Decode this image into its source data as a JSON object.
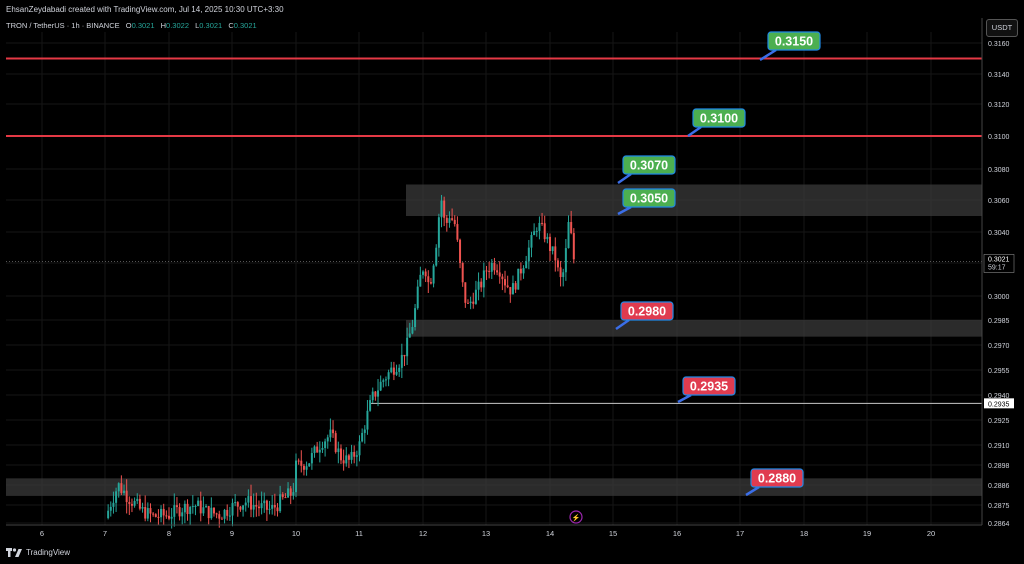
{
  "header": {
    "creator": "EhsanZeydabadi created with TradingView.com, Jul 14, 2025 10:30 UTC+3:30",
    "symbol": "TRON / TetherUS · 1h · BINANCE",
    "ohlc": [
      {
        "label": "O",
        "value": "0.3021"
      },
      {
        "label": "H",
        "value": "0.3022"
      },
      {
        "label": "L",
        "value": "0.3021"
      },
      {
        "label": "C",
        "value": "0.3021"
      }
    ],
    "currency": "USDT"
  },
  "footer": {
    "brand": "TradingView"
  },
  "colors": {
    "up": "#26a69a",
    "down": "#ef5350",
    "resistance": "#e53945",
    "label_green": "#4caf50",
    "label_red": "#e03b4f",
    "zone": "#3a3a3a",
    "grid": "#161616"
  },
  "chart_data": {
    "type": "candlestick",
    "x_ticks": [
      "6",
      "7",
      "8",
      "9",
      "10",
      "11",
      "12",
      "13",
      "14",
      "15",
      "16",
      "17",
      "18",
      "19",
      "20"
    ],
    "y_ticks": [
      "0.3160",
      "0.3140",
      "0.3120",
      "0.3100",
      "0.3080",
      "0.3060",
      "0.3040",
      "0.3020",
      "0.3000",
      "0.2985",
      "0.2970",
      "0.2955",
      "0.2940",
      "0.2925",
      "0.2910",
      "0.2898",
      "0.2886",
      "0.2875",
      "0.2864"
    ],
    "ylim": [
      0.2864,
      0.3165
    ],
    "last_price": "0.3021",
    "countdown": "59:17",
    "level_marker": "0.2935",
    "horizontal_lines": [
      {
        "price": 0.315,
        "style": "resistance"
      },
      {
        "price": 0.31,
        "style": "resistance"
      },
      {
        "price": 0.2935,
        "style": "plain"
      }
    ],
    "zones": [
      {
        "top": 0.307,
        "bottom": 0.305
      },
      {
        "top": 0.2985,
        "bottom": 0.2975
      },
      {
        "top": 0.289,
        "bottom": 0.288
      }
    ],
    "price_labels": [
      {
        "text": "0.3150",
        "color": "green"
      },
      {
        "text": "0.3100",
        "color": "green"
      },
      {
        "text": "0.3070",
        "color": "green"
      },
      {
        "text": "0.3050",
        "color": "green"
      },
      {
        "text": "0.2980",
        "color": "red"
      },
      {
        "text": "0.2935",
        "color": "red"
      },
      {
        "text": "0.2880",
        "color": "red"
      }
    ],
    "close_path": [
      [
        7.0,
        0.2867
      ],
      [
        7.1,
        0.2878
      ],
      [
        7.2,
        0.2886
      ],
      [
        7.35,
        0.288
      ],
      [
        7.55,
        0.2872
      ],
      [
        7.75,
        0.2868
      ],
      [
        8.0,
        0.2869
      ],
      [
        8.2,
        0.2873
      ],
      [
        8.4,
        0.2875
      ],
      [
        8.6,
        0.2871
      ],
      [
        8.8,
        0.2869
      ],
      [
        9.0,
        0.2874
      ],
      [
        9.2,
        0.2877
      ],
      [
        9.4,
        0.2874
      ],
      [
        9.6,
        0.2872
      ],
      [
        9.8,
        0.2878
      ],
      [
        9.95,
        0.2882
      ],
      [
        10.0,
        0.2897
      ],
      [
        10.2,
        0.29
      ],
      [
        10.4,
        0.2912
      ],
      [
        10.55,
        0.2916
      ],
      [
        10.7,
        0.2903
      ],
      [
        10.85,
        0.29
      ],
      [
        11.0,
        0.291
      ],
      [
        11.1,
        0.2925
      ],
      [
        11.2,
        0.2938
      ],
      [
        11.35,
        0.2948
      ],
      [
        11.5,
        0.2955
      ],
      [
        11.65,
        0.2961
      ],
      [
        11.75,
        0.297
      ],
      [
        11.85,
        0.2985
      ],
      [
        11.95,
        0.301
      ],
      [
        12.02,
        0.302
      ],
      [
        12.1,
        0.3005
      ],
      [
        12.2,
        0.303
      ],
      [
        12.25,
        0.305
      ],
      [
        12.3,
        0.3062
      ],
      [
        12.35,
        0.304
      ],
      [
        12.4,
        0.3052
      ],
      [
        12.5,
        0.3045
      ],
      [
        12.55,
        0.303
      ],
      [
        12.6,
        0.3012
      ],
      [
        12.65,
        0.3
      ],
      [
        12.7,
        0.2993
      ],
      [
        12.8,
        0.3
      ],
      [
        12.9,
        0.3006
      ],
      [
        13.0,
        0.3016
      ],
      [
        13.1,
        0.302
      ],
      [
        13.2,
        0.3017
      ],
      [
        13.3,
        0.3008
      ],
      [
        13.4,
        0.3003
      ],
      [
        13.5,
        0.3012
      ],
      [
        13.6,
        0.3022
      ],
      [
        13.7,
        0.3033
      ],
      [
        13.8,
        0.3045
      ],
      [
        13.9,
        0.304
      ],
      [
        14.0,
        0.303
      ],
      [
        14.1,
        0.3022
      ],
      [
        14.15,
        0.3008
      ],
      [
        14.22,
        0.3015
      ],
      [
        14.3,
        0.3048
      ],
      [
        14.38,
        0.3021
      ]
    ]
  }
}
